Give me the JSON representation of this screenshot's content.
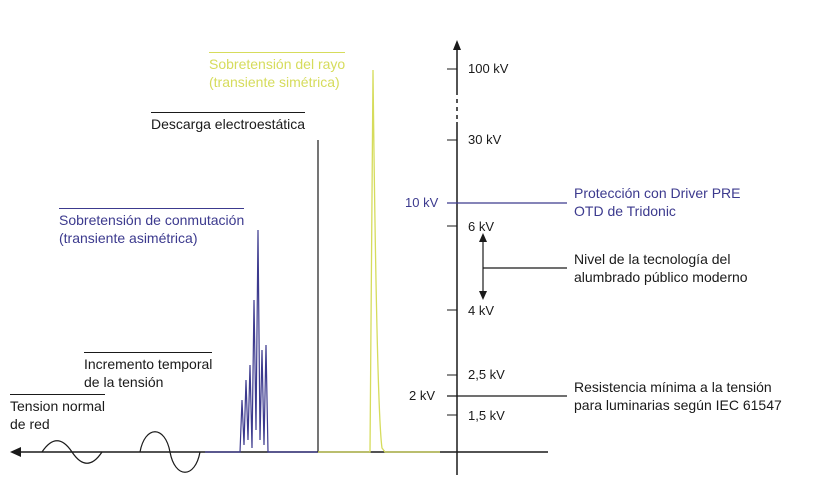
{
  "axis_ticks": {
    "t100": "100 kV",
    "t30": "30 kV",
    "t10": "10 kV",
    "t6": "6 kV",
    "t4": "4 kV",
    "t25": "2,5 kV",
    "t2": "2 kV",
    "t15": "1,5 kV"
  },
  "labels": {
    "lightning": [
      "Sobretensión del rayo",
      "(transiente simétrica)"
    ],
    "esd": "Descarga electroestática",
    "switching": [
      "Sobretensión de conmutación",
      "(transiente asimétrica)"
    ],
    "temporary": [
      "Incremento temporal",
      "de la tensión"
    ],
    "mains": [
      "Tension normal",
      "de red"
    ],
    "protection": [
      "Protección con Driver PRE",
      "OTD de Tridonic"
    ],
    "lighting_level": [
      "Nivel de la tecnología del",
      "alumbrado público moderno"
    ],
    "min_resistance": [
      "Resistencia mínima a la tensión",
      "para luminarias según IEC 61547"
    ]
  },
  "colors": {
    "dark": "#1a1a1a",
    "blue": "#3c3a8e",
    "yellow": "#d6dc5c"
  }
}
